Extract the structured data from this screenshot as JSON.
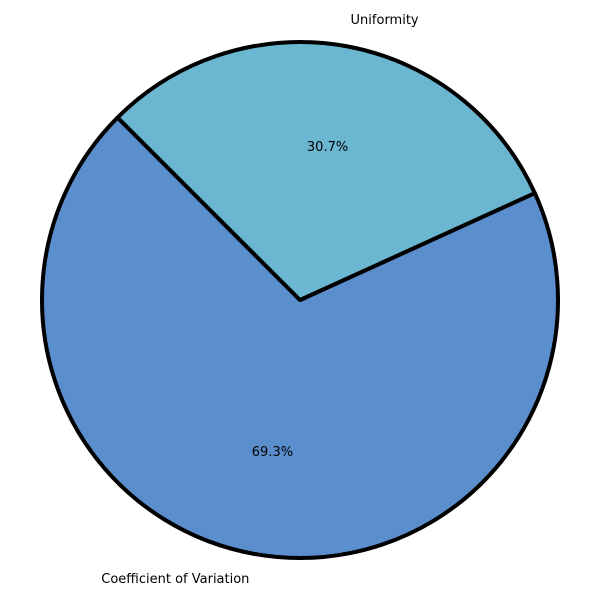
{
  "chart_data": {
    "type": "pie",
    "title": "",
    "start_angle_deg": 135,
    "direction": "counterclockwise",
    "slices": [
      {
        "label": "Coefficient of Variation",
        "value": 69.3,
        "pct_label": "69.3%",
        "color": "#5b8ecc"
      },
      {
        "label": "Uniformity",
        "value": 30.7,
        "pct_label": "30.7%",
        "color": "#6bb6d1"
      }
    ],
    "edge_color": "#000000"
  }
}
